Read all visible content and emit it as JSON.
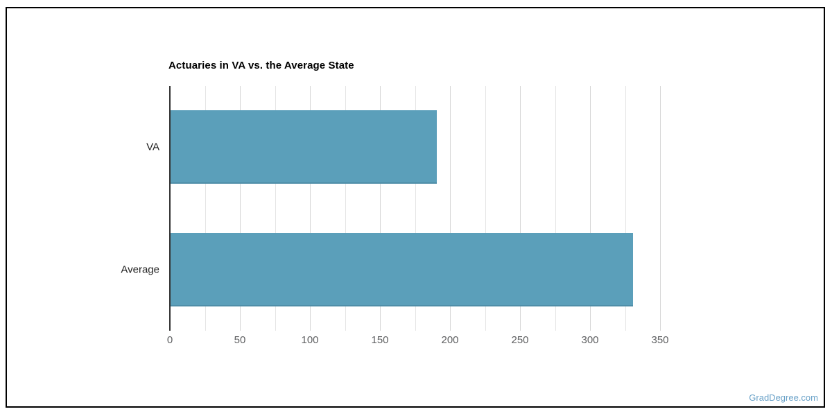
{
  "page": {
    "watermark": "GradDegree.com"
  },
  "chart_data": {
    "type": "bar",
    "orientation": "horizontal",
    "title": "Actuaries in VA vs. the Average State",
    "categories": [
      "VA",
      "Average"
    ],
    "values": [
      190,
      330
    ],
    "xlabel": "",
    "ylabel": "",
    "xlim": [
      0,
      350
    ],
    "x_ticks": [
      0,
      50,
      100,
      150,
      200,
      250,
      300,
      350
    ],
    "minor_grid_interval": 25,
    "grid": "on",
    "legend": "none"
  },
  "colors": {
    "bar": "#5b9fba",
    "bar_bottom_edge": "#4f8ea8",
    "axis_line": "#333333",
    "grid_major": "#d6d6d6",
    "grid_minor": "#e4e4e4",
    "tick_label": "#5f6062",
    "category_label": "#212121",
    "title": "#000000",
    "border": "#000000",
    "watermark": "#6aa2c8"
  }
}
